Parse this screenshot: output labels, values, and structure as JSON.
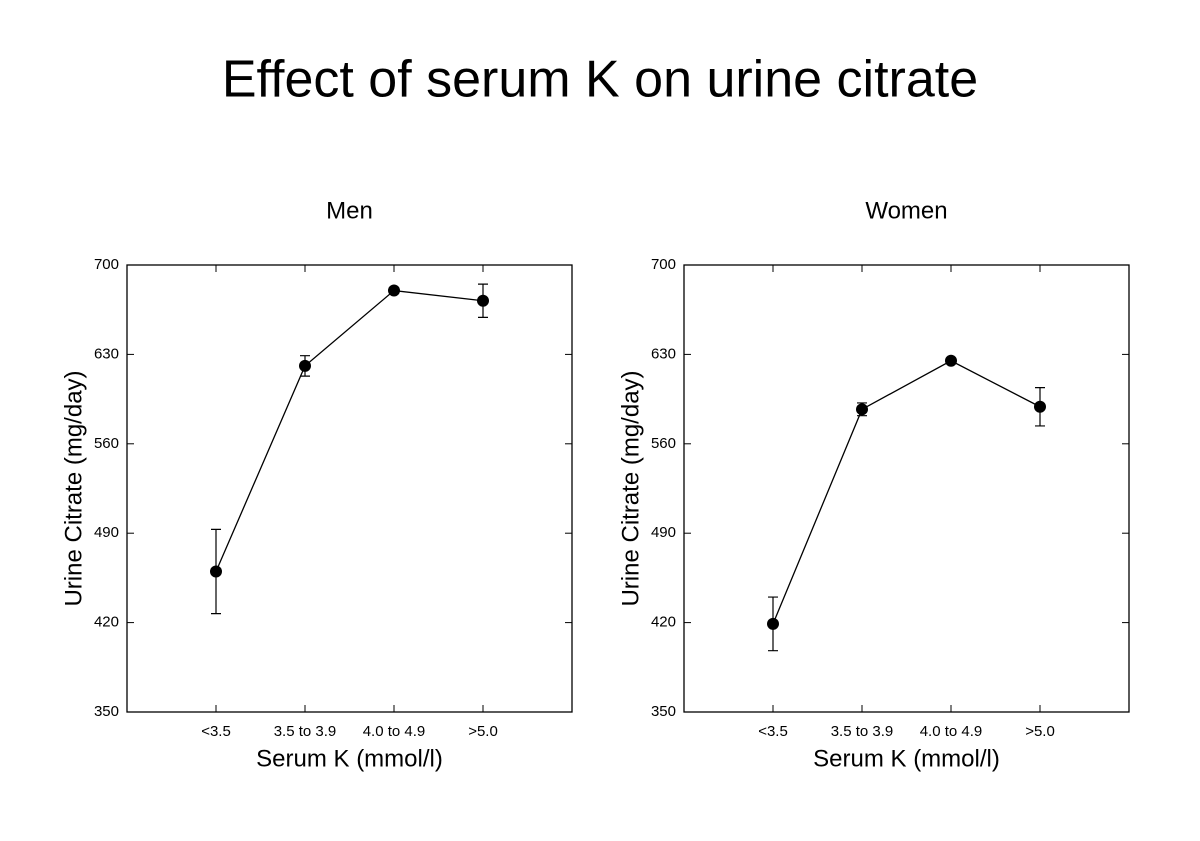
{
  "title": "Effect of serum K on urine citrate",
  "chart_data": [
    {
      "type": "line",
      "title": "Men",
      "x_label": "Serum K (mmol/l)",
      "y_label": "Urine Citrate (mg/day)",
      "categories": [
        "<3.5",
        "3.5 to 3.9",
        "4.0 to 4.9",
        ">5.0"
      ],
      "values": [
        460,
        621,
        680,
        672
      ],
      "errors": [
        33,
        8,
        2,
        13
      ],
      "color": "#000000",
      "ylim": [
        350,
        700
      ],
      "yticks": [
        350,
        420,
        490,
        560,
        630,
        700
      ]
    },
    {
      "type": "line",
      "title": "Women",
      "x_label": "Serum K (mmol/l)",
      "y_label": "Urine Citrate (mg/day)",
      "categories": [
        "<3.5",
        "3.5 to 3.9",
        "4.0 to 4.9",
        ">5.0"
      ],
      "values": [
        419,
        587,
        625,
        589
      ],
      "errors": [
        21,
        5,
        2,
        15
      ],
      "color": "#000000",
      "ylim": [
        350,
        700
      ],
      "yticks": [
        350,
        420,
        490,
        560,
        630,
        700
      ]
    }
  ]
}
